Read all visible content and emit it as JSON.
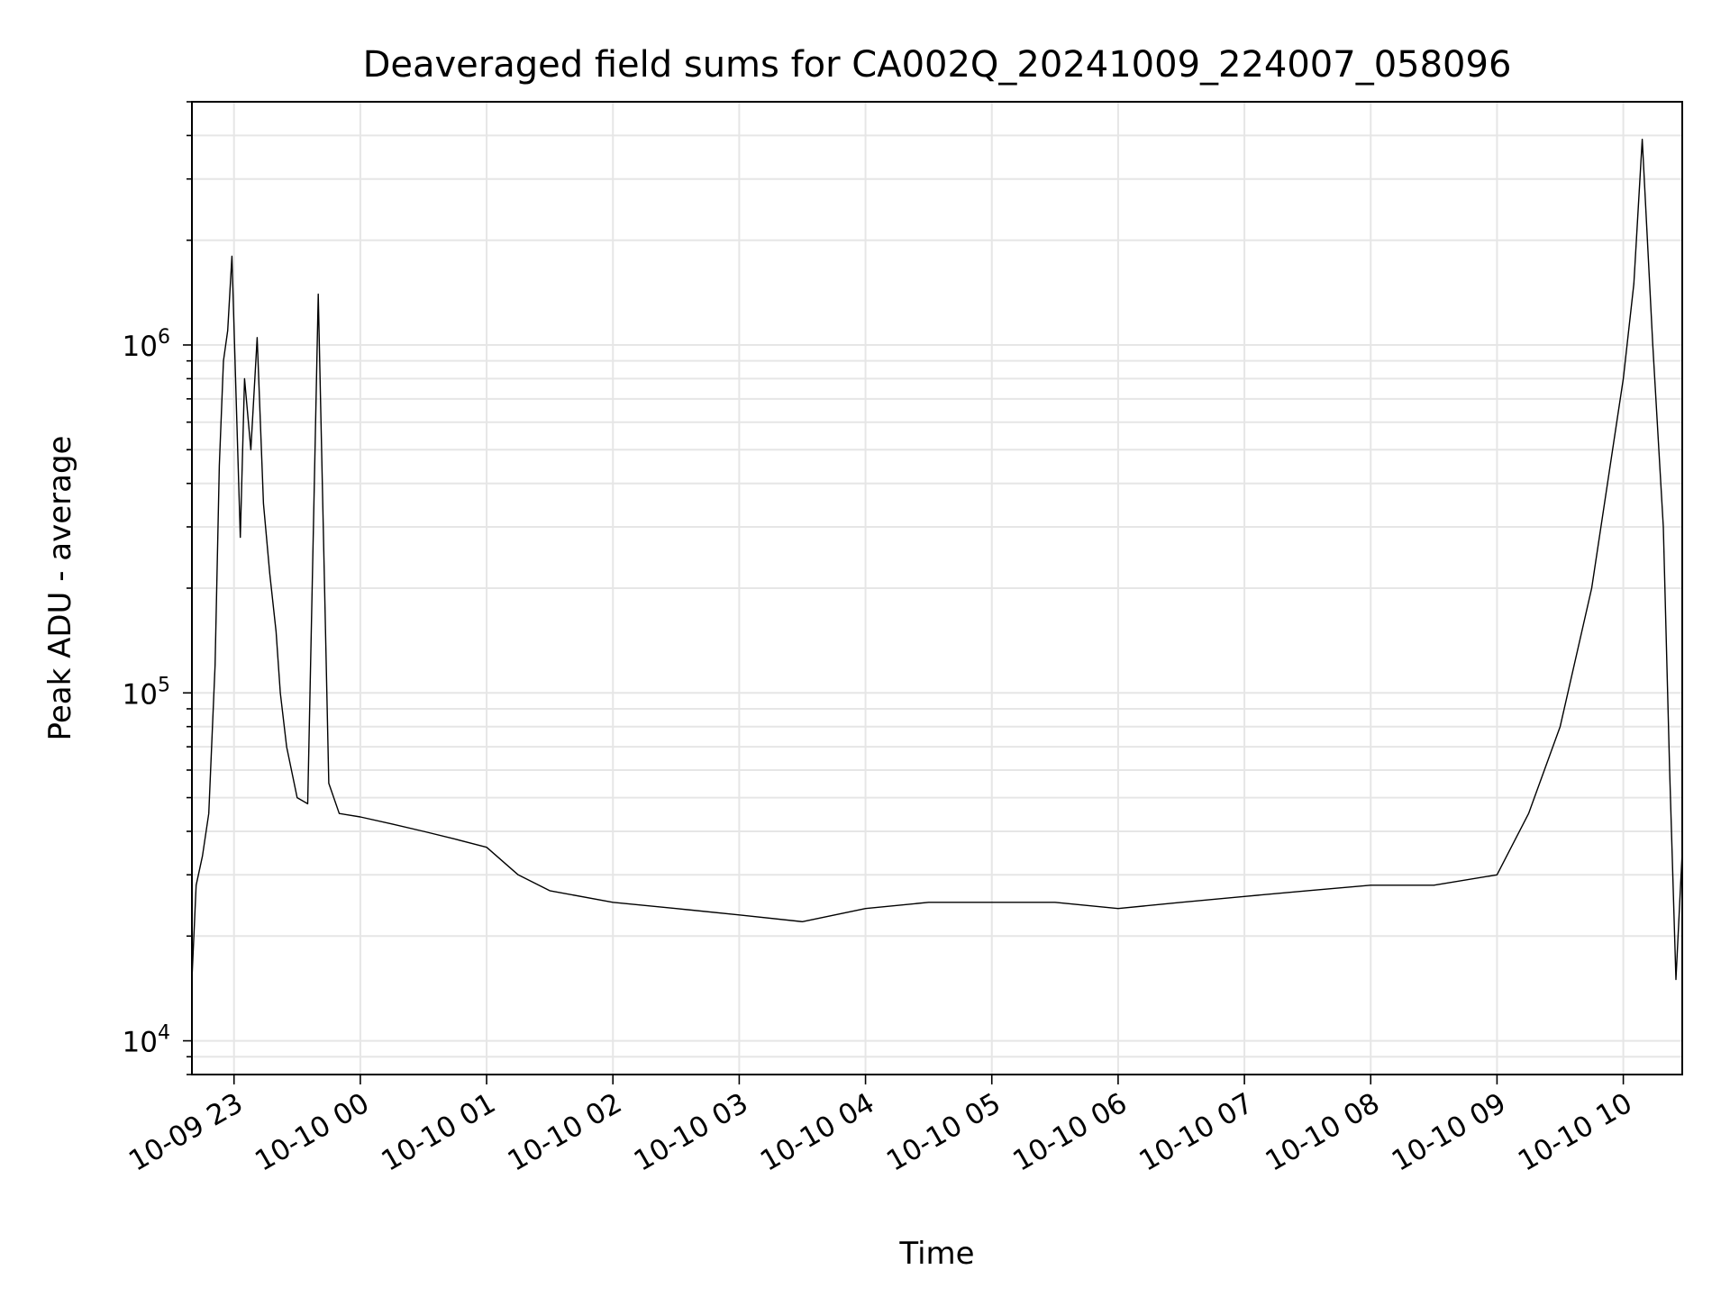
{
  "chart_data": {
    "type": "line",
    "title": "Deaveraged field sums for CA002Q_20241009_224007_058096",
    "xlabel": "Time",
    "ylabel": "Peak ADU - average",
    "yscale": "log",
    "ylim": [
      8000,
      5000000
    ],
    "xlim": [
      "2024-10-09 22:40",
      "2024-10-10 10:28"
    ],
    "grid": true,
    "x_ticks": [
      {
        "t": "2024-10-09 23:00",
        "label": "10-09 23"
      },
      {
        "t": "2024-10-10 00:00",
        "label": "10-10 00"
      },
      {
        "t": "2024-10-10 01:00",
        "label": "10-10 01"
      },
      {
        "t": "2024-10-10 02:00",
        "label": "10-10 02"
      },
      {
        "t": "2024-10-10 03:00",
        "label": "10-10 03"
      },
      {
        "t": "2024-10-10 04:00",
        "label": "10-10 04"
      },
      {
        "t": "2024-10-10 05:00",
        "label": "10-10 05"
      },
      {
        "t": "2024-10-10 06:00",
        "label": "10-10 06"
      },
      {
        "t": "2024-10-10 07:00",
        "label": "10-10 07"
      },
      {
        "t": "2024-10-10 08:00",
        "label": "10-10 08"
      },
      {
        "t": "2024-10-10 09:00",
        "label": "10-10 09"
      },
      {
        "t": "2024-10-10 10:00",
        "label": "10-10 10"
      }
    ],
    "y_ticks": [
      {
        "value": 10000,
        "base": "10",
        "exp": "4"
      },
      {
        "value": 100000,
        "base": "10",
        "exp": "5"
      },
      {
        "value": 1000000,
        "base": "10",
        "exp": "6"
      }
    ],
    "line_color": "#000000",
    "grid_color": "#e6e6e6",
    "series": [
      {
        "points": [
          [
            "2024-10-09 22:40",
            15000
          ],
          [
            "2024-10-09 22:42",
            28000
          ],
          [
            "2024-10-09 22:45",
            34000
          ],
          [
            "2024-10-09 22:48",
            45000
          ],
          [
            "2024-10-09 22:51",
            120000
          ],
          [
            "2024-10-09 22:53",
            450000
          ],
          [
            "2024-10-09 22:55",
            900000
          ],
          [
            "2024-10-09 22:57",
            1100000
          ],
          [
            "2024-10-09 22:59",
            1800000
          ],
          [
            "2024-10-09 23:01",
            700000
          ],
          [
            "2024-10-09 23:03",
            280000
          ],
          [
            "2024-10-09 23:05",
            800000
          ],
          [
            "2024-10-09 23:08",
            500000
          ],
          [
            "2024-10-09 23:11",
            1050000
          ],
          [
            "2024-10-09 23:14",
            350000
          ],
          [
            "2024-10-09 23:17",
            220000
          ],
          [
            "2024-10-09 23:20",
            150000
          ],
          [
            "2024-10-09 23:22",
            100000
          ],
          [
            "2024-10-09 23:25",
            70000
          ],
          [
            "2024-10-09 23:30",
            50000
          ],
          [
            "2024-10-09 23:35",
            48000
          ],
          [
            "2024-10-09 23:40",
            1400000
          ],
          [
            "2024-10-09 23:45",
            55000
          ],
          [
            "2024-10-09 23:50",
            45000
          ],
          [
            "2024-10-10 00:00",
            44000
          ],
          [
            "2024-10-10 00:15",
            42000
          ],
          [
            "2024-10-10 00:30",
            40000
          ],
          [
            "2024-10-10 00:45",
            38000
          ],
          [
            "2024-10-10 01:00",
            36000
          ],
          [
            "2024-10-10 01:15",
            30000
          ],
          [
            "2024-10-10 01:30",
            27000
          ],
          [
            "2024-10-10 02:00",
            25000
          ],
          [
            "2024-10-10 02:30",
            24000
          ],
          [
            "2024-10-10 03:00",
            23000
          ],
          [
            "2024-10-10 03:30",
            22000
          ],
          [
            "2024-10-10 04:00",
            24000
          ],
          [
            "2024-10-10 04:30",
            25000
          ],
          [
            "2024-10-10 05:00",
            25000
          ],
          [
            "2024-10-10 05:30",
            25000
          ],
          [
            "2024-10-10 06:00",
            24000
          ],
          [
            "2024-10-10 06:30",
            25000
          ],
          [
            "2024-10-10 07:00",
            26000
          ],
          [
            "2024-10-10 07:30",
            27000
          ],
          [
            "2024-10-10 08:00",
            28000
          ],
          [
            "2024-10-10 08:30",
            28000
          ],
          [
            "2024-10-10 09:00",
            30000
          ],
          [
            "2024-10-10 09:15",
            45000
          ],
          [
            "2024-10-10 09:30",
            80000
          ],
          [
            "2024-10-10 09:45",
            200000
          ],
          [
            "2024-10-10 10:00",
            800000
          ],
          [
            "2024-10-10 10:05",
            1500000
          ],
          [
            "2024-10-10 10:09",
            3900000
          ],
          [
            "2024-10-10 10:14",
            1000000
          ],
          [
            "2024-10-10 10:19",
            300000
          ],
          [
            "2024-10-10 10:22",
            60000
          ],
          [
            "2024-10-10 10:25",
            15000
          ],
          [
            "2024-10-10 10:28",
            35000
          ]
        ]
      }
    ]
  }
}
